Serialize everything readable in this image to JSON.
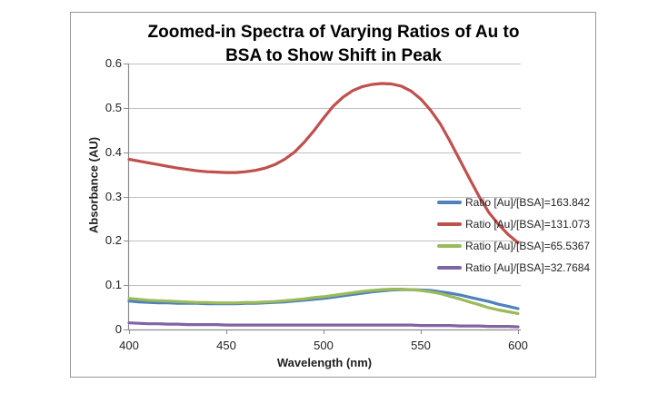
{
  "colors": {
    "gridline": "#bfbfbf",
    "axis": "#8c8c8c",
    "frame_border": "#969696",
    "text": "#1f1f1f",
    "background": "#ffffff"
  },
  "chart_data": {
    "type": "line",
    "title": "Zoomed-in Spectra of Varying Ratios of Au to BSA to Show Shift in Peak",
    "title_lines": [
      "Zoomed-in Spectra of Varying Ratios of Au to",
      "BSA to Show Shift in Peak"
    ],
    "xlabel": "Wavelength (nm)",
    "ylabel": "Absorbance (AU)",
    "xlim": [
      400,
      600
    ],
    "ylim": [
      0,
      0.6
    ],
    "x_ticks": [
      400,
      450,
      500,
      550,
      600
    ],
    "x_tick_labels": [
      "400",
      "450",
      "500",
      "550",
      "600"
    ],
    "y_ticks": [
      0,
      0.1,
      0.2,
      0.3,
      0.4,
      0.5,
      0.6
    ],
    "y_tick_labels": [
      "0",
      "0.1",
      "0.2",
      "0.3",
      "0.4",
      "0.5",
      "0.6"
    ],
    "grid": "horizontal",
    "legend_position": "middle-right",
    "x": [
      400,
      405,
      410,
      415,
      420,
      425,
      430,
      435,
      440,
      445,
      450,
      455,
      460,
      465,
      470,
      475,
      480,
      485,
      490,
      495,
      500,
      505,
      510,
      515,
      520,
      525,
      530,
      535,
      540,
      545,
      550,
      555,
      560,
      565,
      570,
      575,
      580,
      585,
      590,
      595,
      600
    ],
    "series": [
      {
        "name": "Ratio [Au]/[BSA]=163.842",
        "color": "#4F81BD",
        "values": [
          0.064,
          0.062,
          0.061,
          0.06,
          0.06,
          0.059,
          0.059,
          0.059,
          0.058,
          0.058,
          0.058,
          0.058,
          0.059,
          0.059,
          0.06,
          0.061,
          0.062,
          0.064,
          0.066,
          0.068,
          0.07,
          0.073,
          0.076,
          0.079,
          0.082,
          0.085,
          0.087,
          0.089,
          0.09,
          0.09,
          0.089,
          0.088,
          0.085,
          0.082,
          0.078,
          0.073,
          0.068,
          0.063,
          0.057,
          0.052,
          0.047
        ]
      },
      {
        "name": "Ratio [Au]/[BSA]=131.073",
        "color": "#C0504D",
        "values": [
          0.384,
          0.38,
          0.376,
          0.372,
          0.368,
          0.364,
          0.361,
          0.358,
          0.356,
          0.355,
          0.354,
          0.354,
          0.356,
          0.359,
          0.364,
          0.372,
          0.384,
          0.4,
          0.422,
          0.448,
          0.477,
          0.504,
          0.524,
          0.539,
          0.548,
          0.553,
          0.555,
          0.554,
          0.549,
          0.538,
          0.52,
          0.495,
          0.464,
          0.425,
          0.383,
          0.341,
          0.3,
          0.264,
          0.237,
          0.214,
          0.196
        ]
      },
      {
        "name": "Ratio [Au]/[BSA]=65.5367",
        "color": "#9BBB59",
        "values": [
          0.07,
          0.068,
          0.066,
          0.065,
          0.064,
          0.063,
          0.062,
          0.061,
          0.061,
          0.06,
          0.06,
          0.06,
          0.061,
          0.061,
          0.062,
          0.063,
          0.065,
          0.067,
          0.069,
          0.072,
          0.074,
          0.077,
          0.08,
          0.083,
          0.086,
          0.088,
          0.09,
          0.091,
          0.091,
          0.09,
          0.088,
          0.085,
          0.081,
          0.075,
          0.069,
          0.062,
          0.056,
          0.049,
          0.044,
          0.04,
          0.036
        ]
      },
      {
        "name": "Ratio [Au]/[BSA]=32.7684",
        "color": "#8064A2",
        "values": [
          0.015,
          0.014,
          0.013,
          0.013,
          0.012,
          0.012,
          0.011,
          0.011,
          0.011,
          0.011,
          0.01,
          0.01,
          0.01,
          0.01,
          0.01,
          0.01,
          0.01,
          0.01,
          0.01,
          0.01,
          0.01,
          0.01,
          0.01,
          0.01,
          0.01,
          0.01,
          0.01,
          0.01,
          0.01,
          0.01,
          0.009,
          0.009,
          0.009,
          0.009,
          0.008,
          0.008,
          0.008,
          0.007,
          0.007,
          0.007,
          0.006
        ]
      }
    ]
  }
}
